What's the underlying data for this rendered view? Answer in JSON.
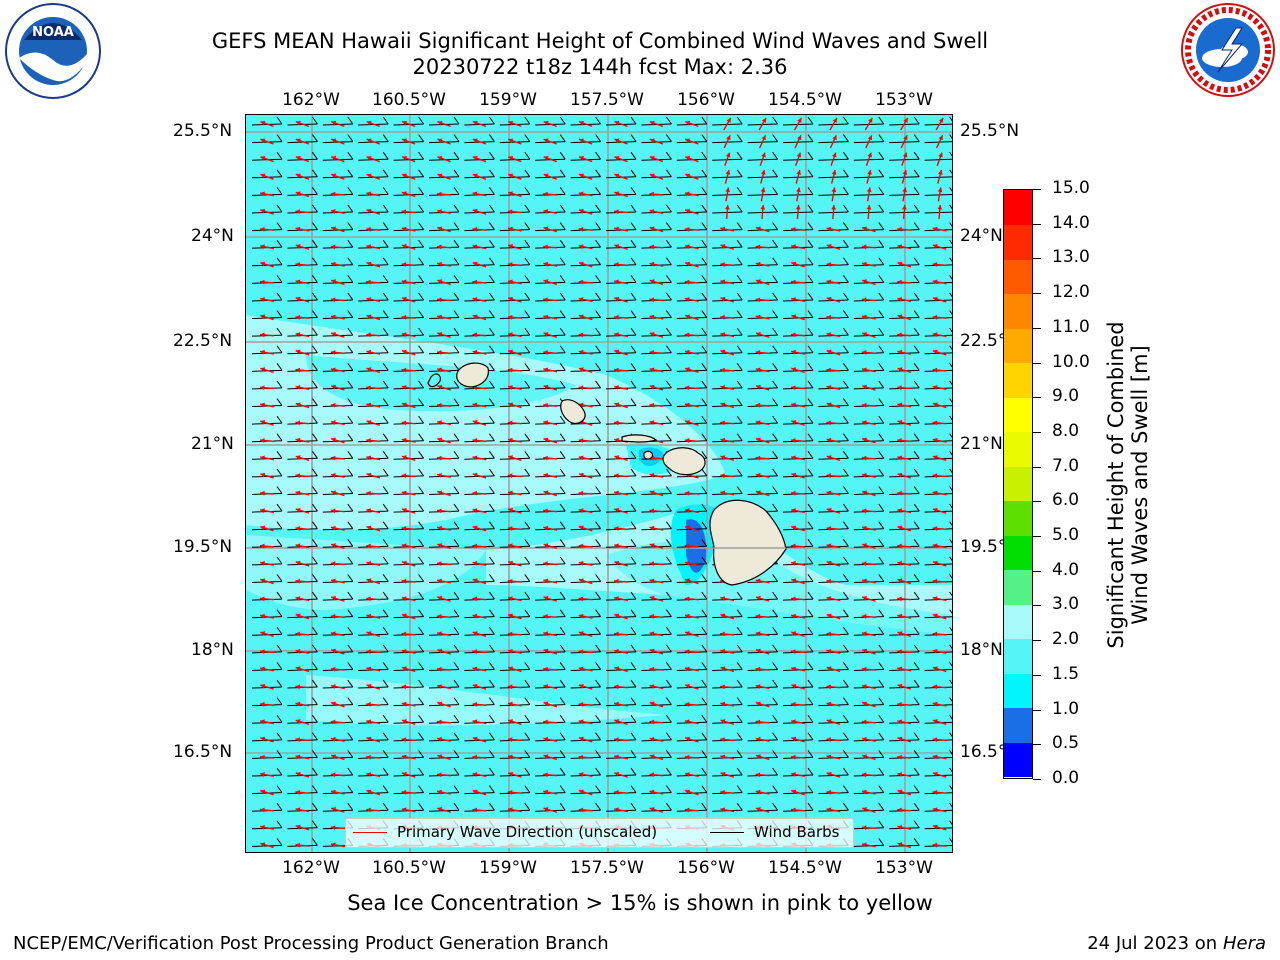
{
  "title_line1": "GEFS MEAN Hawaii Significant Height of Combined Wind Waves and Swell",
  "title_line2": "20230722 t18z 144h fcst   Max: 2.36",
  "logos": {
    "left": "NOAA",
    "left_ring": "NATIONAL OCEANIC AND ATMOSPHERIC ADMINISTRATION · U.S. DEPARTMENT OF COMMERCE",
    "right_ring": "NATIONAL WEATHER SERVICE"
  },
  "lon_labels": [
    "162°W",
    "160.5°W",
    "159°W",
    "157.5°W",
    "156°W",
    "154.5°W",
    "153°W"
  ],
  "lat_labels": [
    "25.5°N",
    "24°N",
    "22.5°N",
    "21°N",
    "19.5°N",
    "18°N",
    "16.5°N"
  ],
  "colorbar": {
    "label_line1": "Significant Height of Combined",
    "label_line2": "Wind Waves and Swell [m]",
    "ticks": [
      "0.0",
      "0.5",
      "1.0",
      "1.5",
      "2.0",
      "3.0",
      "4.0",
      "5.0",
      "6.0",
      "7.0",
      "8.0",
      "9.0",
      "10.0",
      "11.0",
      "12.0",
      "13.0",
      "14.0",
      "15.0"
    ],
    "colors": [
      "#0000ff",
      "#1a6fe6",
      "#00f5ff",
      "#55f5f5",
      "#a8fafa",
      "#55f088",
      "#00dd00",
      "#5de000",
      "#c8f000",
      "#ecfa00",
      "#ffff00",
      "#ffd400",
      "#ffaa00",
      "#ff8800",
      "#ff5a00",
      "#ff2a00",
      "#ff0000"
    ]
  },
  "legend": {
    "wave_label": "Primary Wave Direction (unscaled)",
    "barb_label": "Wind Barbs",
    "wave_color": "#ff0000",
    "barb_color": "#000000"
  },
  "sea_ice_note": "Sea Ice Concentration > 15% is shown in pink to yellow",
  "footer_left": "NCEP/EMC/Verification Post Processing Product Generation Branch",
  "footer_right_prefix": "24 Jul 2023 on ",
  "footer_right_host": "Hera",
  "map_colors": {
    "sea_main": "#55f5f5",
    "sea_light": "#a8fafa",
    "sea_mid": "#00f5ff",
    "sea_blue": "#1a6fe6",
    "land": "#efe9d9"
  }
}
